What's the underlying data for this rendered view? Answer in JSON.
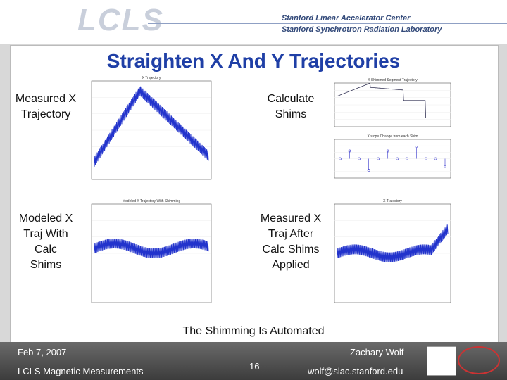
{
  "header": {
    "logo": "LCLS",
    "org1": "Stanford Linear Accelerator Center",
    "org2": "Stanford Synchrotron Radiation Laboratory"
  },
  "slide": {
    "title": "Straighten X And Y Trajectories",
    "labels": [
      "Measured X Trajectory",
      "Calculate Shims",
      "Modeled X Traj With Calc Shims",
      "Measured X Traj After Calc Shims Applied"
    ],
    "plot_titles": [
      "X Trajectory",
      "X Shimmed Segment Trajectory",
      "X slope Change from each Shim",
      "Modeled X Trajectory With Shimming",
      "X Trajectory"
    ],
    "caption": "The Shimming Is Automated"
  },
  "footer": {
    "date": "Feb 7, 2007",
    "group": "LCLS Magnetic Measurements",
    "page": "16",
    "author": "Zachary Wolf",
    "email": "wolf@slac.stanford.edu"
  }
}
